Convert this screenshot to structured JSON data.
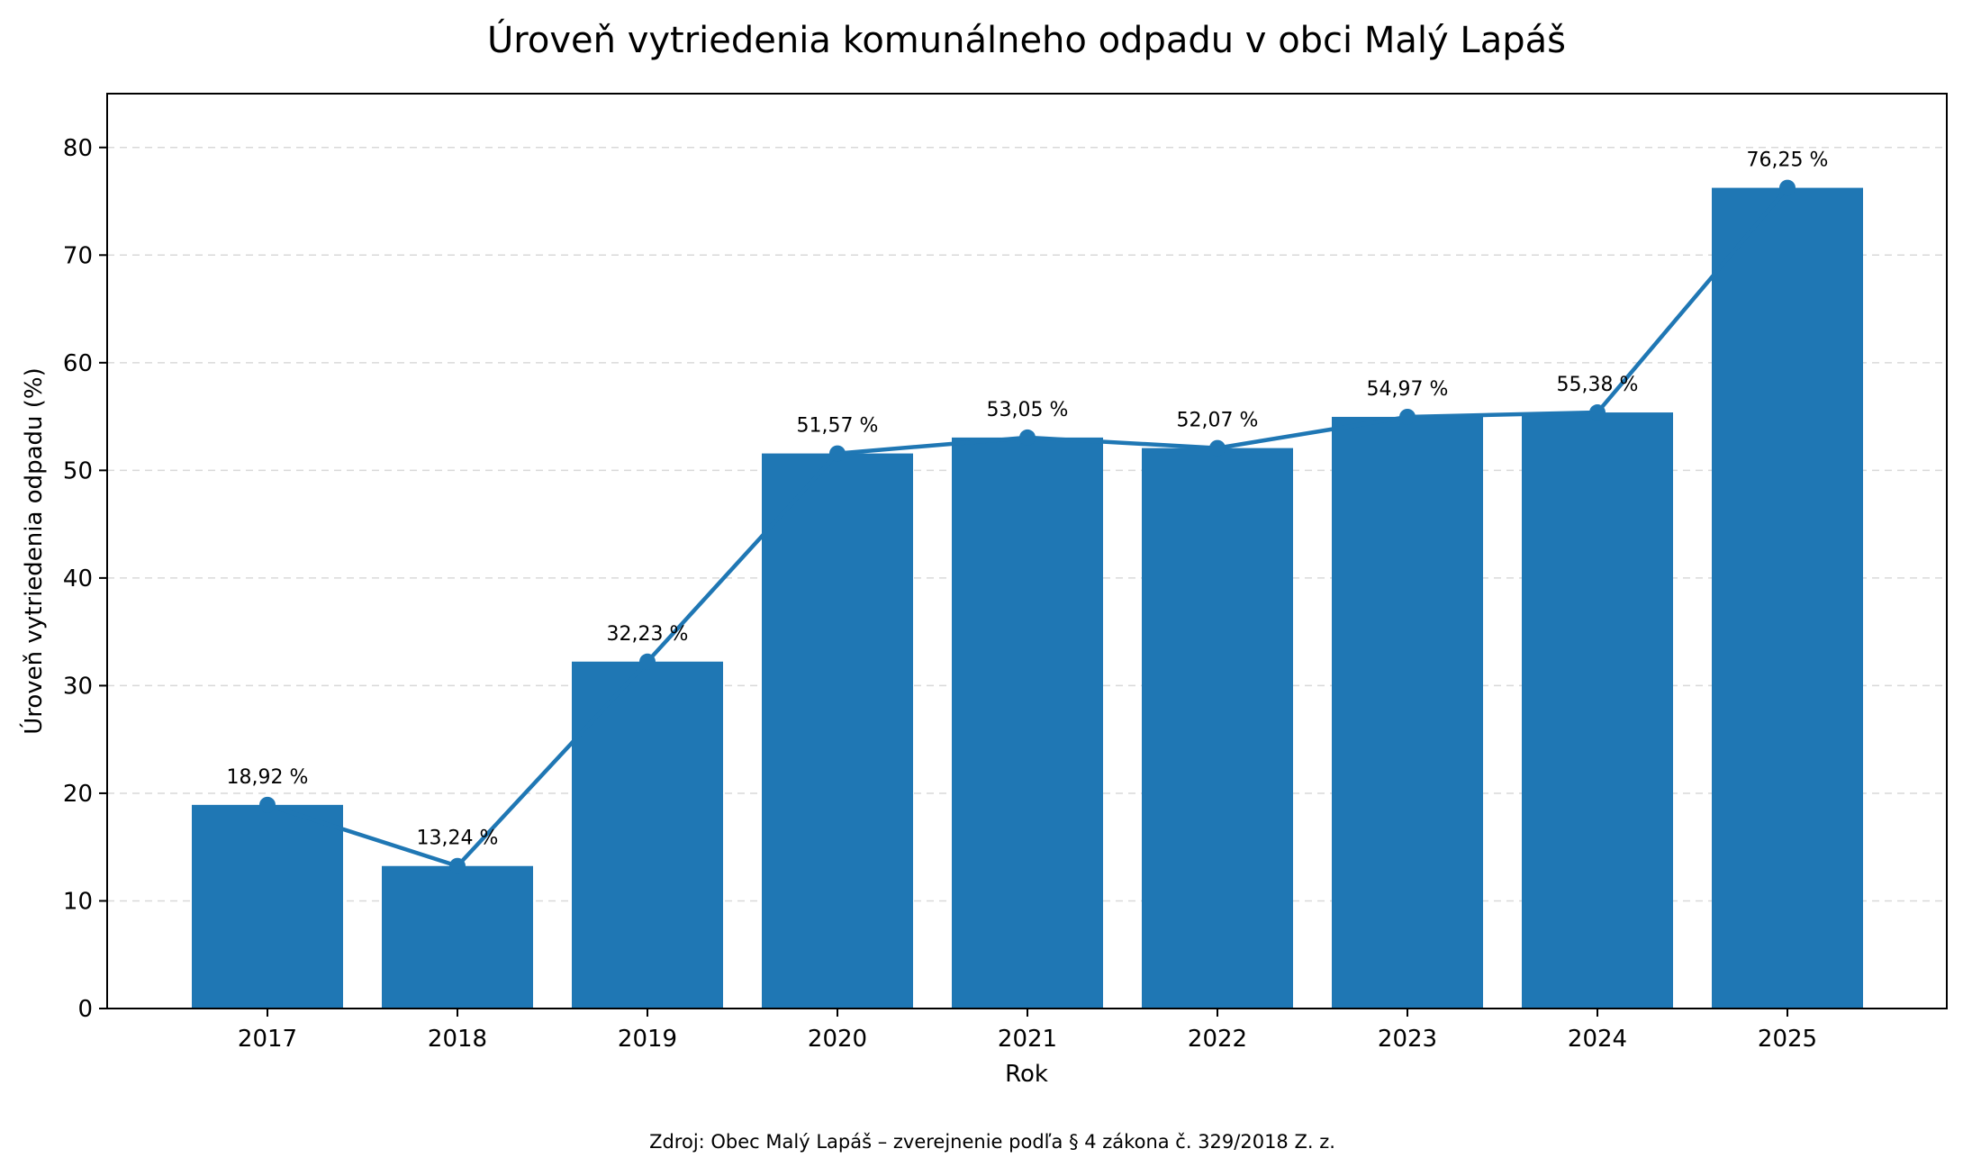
{
  "chart_data": {
    "type": "bar",
    "title": "Úroveň vytriedenia komunálneho odpadu v obci Malý Lapáš",
    "xlabel": "Rok",
    "ylabel": "Úroveň vytriedenia odpadu (%)",
    "categories": [
      "2017",
      "2018",
      "2019",
      "2020",
      "2021",
      "2022",
      "2023",
      "2024",
      "2025"
    ],
    "values": [
      18.92,
      13.24,
      32.23,
      51.57,
      53.05,
      52.07,
      54.97,
      55.38,
      76.25
    ],
    "data_labels": [
      "18,92 %",
      "13,24 %",
      "32,23 %",
      "51,57 %",
      "53,05 %",
      "52,07 %",
      "54,97 %",
      "55,38 %",
      "76,25 %"
    ],
    "overlay_line": true,
    "ylim": [
      0,
      85
    ],
    "yticks": [
      0,
      10,
      20,
      30,
      40,
      50,
      60,
      70,
      80
    ],
    "grid": "horizontal dashed",
    "legend": "none",
    "colors": {
      "bar": "#1f77b4",
      "line": "#1f77b4",
      "grid": "#d9d9d9",
      "text": "#000000"
    }
  },
  "footer": {
    "source": "Zdroj: Obec Malý Lapáš – zverejnenie podľa § 4 zákona č. 329/2018 Z. z."
  }
}
